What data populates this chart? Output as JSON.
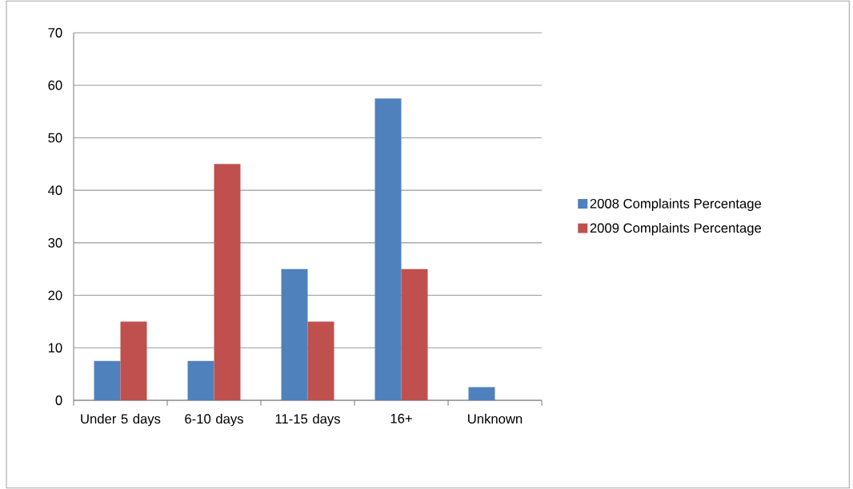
{
  "chart_data": {
    "type": "bar",
    "categories": [
      "Under 5 days",
      "6-10 days",
      "11-15 days",
      "16+",
      "Unknown"
    ],
    "series": [
      {
        "name": "2008 Complaints Percentage",
        "color": "#4f81bd",
        "values": [
          7.5,
          7.5,
          25,
          57.5,
          2.5
        ]
      },
      {
        "name": "2009 Complaints Percentage",
        "color": "#c0504d",
        "values": [
          15,
          45,
          15,
          25,
          null
        ]
      }
    ],
    "ylim": [
      0,
      70
    ],
    "yticks": [
      0,
      10,
      20,
      30,
      40,
      50,
      60,
      70
    ],
    "grid": "y",
    "legend": "right"
  }
}
